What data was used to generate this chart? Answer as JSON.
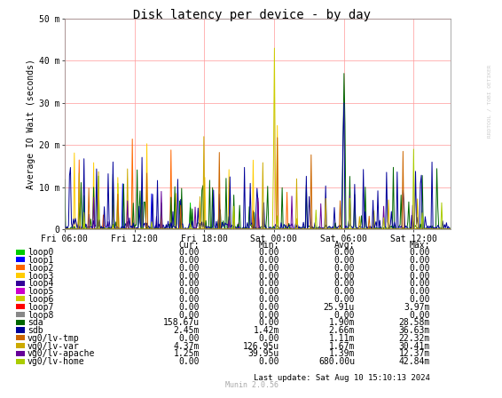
{
  "title": "Disk latency per device - by day",
  "ylabel": "Average IO Wait (seconds)",
  "background_color": "#FFFFFF",
  "plot_bg_color": "#FFFFFF",
  "grid_color": "#FF9999",
  "ytick_labels": [
    "0",
    "10 m",
    "20 m",
    "30 m",
    "40 m",
    "50 m"
  ],
  "ytick_values": [
    0,
    0.01,
    0.02,
    0.03,
    0.04,
    0.05
  ],
  "ylim": [
    0,
    0.05
  ],
  "xtick_labels": [
    "Fri 06:00",
    "Fri 12:00",
    "Fri 18:00",
    "Sat 00:00",
    "Sat 06:00",
    "Sat 12:00"
  ],
  "legend_items": [
    {
      "label": "loop0",
      "color": "#00CC00"
    },
    {
      "label": "loop1",
      "color": "#0000FF"
    },
    {
      "label": "loop2",
      "color": "#FF6600"
    },
    {
      "label": "loop3",
      "color": "#FFCC00"
    },
    {
      "label": "loop4",
      "color": "#330099"
    },
    {
      "label": "loop5",
      "color": "#CC00CC"
    },
    {
      "label": "loop6",
      "color": "#CCCC00"
    },
    {
      "label": "loop7",
      "color": "#FF0000"
    },
    {
      "label": "loop8",
      "color": "#888888"
    },
    {
      "label": "sda",
      "color": "#006600"
    },
    {
      "label": "sdb",
      "color": "#000099"
    },
    {
      "label": "vg0/lv-tmp",
      "color": "#CC6600"
    },
    {
      "label": "vg0/lv-var",
      "color": "#CCAA00"
    },
    {
      "label": "vg0/lv-apache",
      "color": "#660099"
    },
    {
      "label": "vg0/lv-home",
      "color": "#AACC00"
    }
  ],
  "table_header": [
    "Cur:",
    "Min:",
    "Avg:",
    "Max:"
  ],
  "table_data": [
    [
      "0.00",
      "0.00",
      "0.00",
      "0.00"
    ],
    [
      "0.00",
      "0.00",
      "0.00",
      "0.00"
    ],
    [
      "0.00",
      "0.00",
      "0.00",
      "0.00"
    ],
    [
      "0.00",
      "0.00",
      "0.00",
      "0.00"
    ],
    [
      "0.00",
      "0.00",
      "0.00",
      "0.00"
    ],
    [
      "0.00",
      "0.00",
      "0.00",
      "0.00"
    ],
    [
      "0.00",
      "0.00",
      "0.00",
      "0.00"
    ],
    [
      "0.00",
      "0.00",
      "25.91u",
      "3.97m"
    ],
    [
      "0.00",
      "0.00",
      "0.00",
      "0.00"
    ],
    [
      "158.67u",
      "0.00",
      "1.90m",
      "28.58m"
    ],
    [
      "2.45m",
      "1.42m",
      "2.66m",
      "36.63m"
    ],
    [
      "0.00",
      "0.00",
      "1.11m",
      "22.32m"
    ],
    [
      "4.37m",
      "126.95u",
      "1.67m",
      "30.41m"
    ],
    [
      "1.25m",
      "39.95u",
      "1.39m",
      "12.37m"
    ],
    [
      "0.00",
      "0.00",
      "680.00u",
      "42.84m"
    ]
  ],
  "footnote": "Munin 2.0.56",
  "last_update": "Last update: Sat Aug 10 15:10:13 2024",
  "watermark": "RRDTOOL / TOBI OETIKER"
}
